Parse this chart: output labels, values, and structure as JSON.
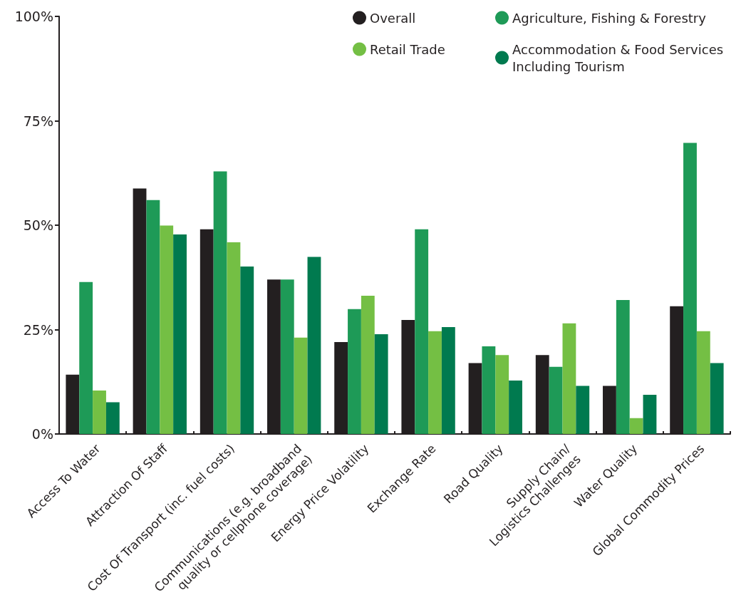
{
  "chart_data": {
    "type": "bar",
    "categories": [
      "Access To Water",
      "Attraction Of Staff",
      "Cost Of Transport (inc. fuel costs)",
      "Communications (e.g. broadband\nquality or cellphone coverage)",
      "Energy Price Volatility",
      "Exchange Rate",
      "Road Quality",
      "Supply Chain/\nLogistics Challenges",
      "Water Quality",
      "Global Commodity Prices"
    ],
    "series": [
      {
        "name": "Overall",
        "color": "#231f20",
        "values": [
          14.2,
          58.8,
          49.0,
          37.0,
          22.0,
          27.3,
          17.0,
          18.9,
          11.5,
          30.6
        ]
      },
      {
        "name": "Agriculture, Fishing & Forestry",
        "color": "#1e9a57",
        "values": [
          36.4,
          56.0,
          62.9,
          37.0,
          29.9,
          49.0,
          21.0,
          16.1,
          32.1,
          69.7
        ]
      },
      {
        "name": "Retail Trade",
        "color": "#74bf44",
        "values": [
          10.4,
          49.9,
          45.9,
          23.1,
          33.1,
          24.6,
          18.9,
          26.5,
          3.8,
          24.6
        ]
      },
      {
        "name": "Accommodation & Food Services\nIncluding Tourism",
        "color": "#007a4f",
        "values": [
          7.6,
          47.8,
          40.1,
          42.4,
          23.9,
          25.6,
          12.8,
          11.5,
          9.4,
          17.0
        ]
      }
    ],
    "ylim": [
      0,
      100
    ],
    "yticks": [
      {
        "value": 0,
        "label": "0%"
      },
      {
        "value": 25,
        "label": "25%"
      },
      {
        "value": 50,
        "label": "50%"
      },
      {
        "value": 75,
        "label": "75%"
      },
      {
        "value": 100,
        "label": "100%"
      }
    ],
    "grid": false,
    "legend": "top right"
  }
}
